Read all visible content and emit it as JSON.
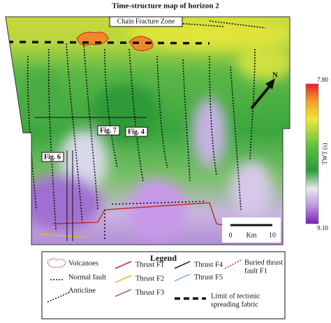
{
  "title": "Time-structure map of horizon 2",
  "map": {
    "annotations": {
      "chain": "Chain Fracture Zone",
      "fig7": "Fig. 7",
      "fig4": "Fig. 4",
      "fig6": "Fig. 6"
    },
    "north": "N",
    "scale_bar": {
      "start": "0",
      "unit": "Km",
      "end": "10"
    }
  },
  "colorbar": {
    "label": "TWT (s)",
    "top": "7.80",
    "bottom": "9.10"
  },
  "legend": {
    "title": "Legend",
    "items": {
      "volcanoes": "Volcanoes",
      "normal_fault": "Normal fault",
      "anticline": "Anticline",
      "f1": "Thrust F1",
      "f2": "Thrust F2",
      "f3": "Thrust F3",
      "f4": "Thrust F4",
      "f5": "Thrust F5",
      "buried": [
        "Buried thrust",
        "fault F1"
      ],
      "limit": [
        "Limit of tectonic",
        "spreading fabric"
      ]
    }
  }
}
